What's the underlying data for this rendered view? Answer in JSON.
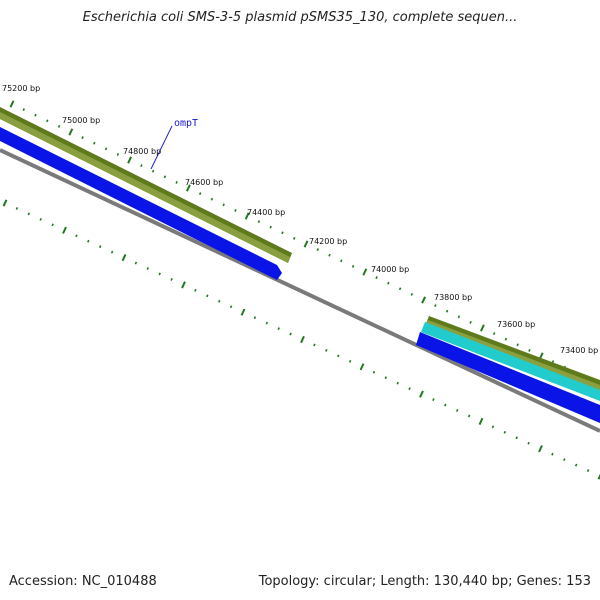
{
  "header": {
    "title": "Escherichia coli SMS-3-5 plasmid pSMS35_130, complete sequen..."
  },
  "footer": {
    "accession": "Accession: NC_010488",
    "summary": "Topology: circular; Length: 130,440 bp; Genes: 153"
  },
  "map": {
    "tick_labels": [
      "75200 bp",
      "75000 bp",
      "74800 bp",
      "74600 bp",
      "74400 bp",
      "74200 bp",
      "74000 bp",
      "73800 bp",
      "73600 bp",
      "73400 bp"
    ],
    "gene_labels": [
      "ompT"
    ],
    "colors": {
      "olive_outer": "#5e7a1a",
      "olive_inner": "#8aa040",
      "cyan": "#22cccc",
      "blue": "#0a14e6",
      "backbone": "#7a7a7a",
      "tick": "#1e7a1e",
      "label_line": "#2222cc"
    }
  }
}
